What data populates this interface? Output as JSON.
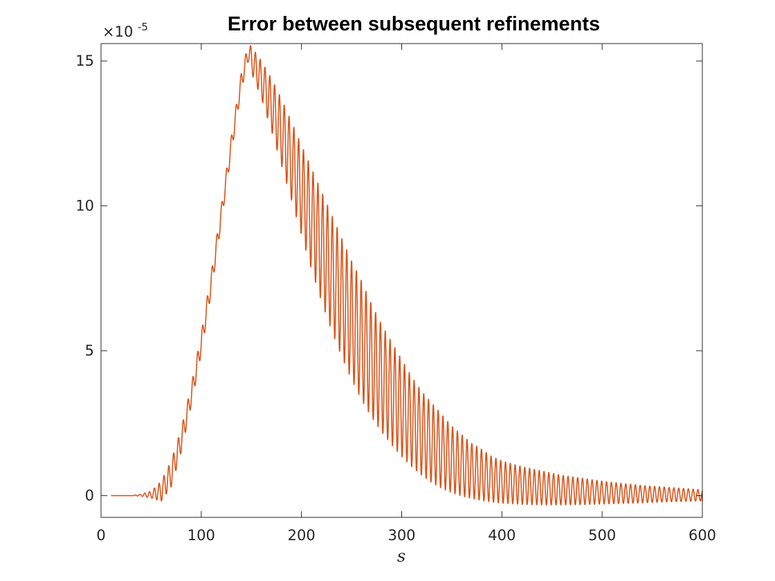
{
  "chart_data": {
    "type": "line",
    "title": "Error between subsequent refinements",
    "xlabel": "s",
    "ylabel": "",
    "xlim": [
      0,
      600
    ],
    "ylim": [
      -0.75,
      15.6
    ],
    "y_multiplier": "×10",
    "y_multiplier_exponent": "-5",
    "xticks": [
      0,
      100,
      200,
      300,
      400,
      500,
      600
    ],
    "yticks": [
      0,
      5,
      10,
      15
    ],
    "grid": false,
    "colors": {
      "series": "#D95319",
      "axis": "#262626"
    },
    "series": [
      {
        "envelope_upper": [
          [
            10,
            0.0
          ],
          [
            30,
            0.0
          ],
          [
            40,
            0.05
          ],
          [
            50,
            0.15
          ],
          [
            60,
            0.5
          ],
          [
            70,
            1.2
          ],
          [
            80,
            2.3
          ],
          [
            90,
            3.8
          ],
          [
            100,
            5.6
          ],
          [
            110,
            7.7
          ],
          [
            120,
            10.0
          ],
          [
            130,
            12.4
          ],
          [
            140,
            14.6
          ],
          [
            147,
            15.6
          ],
          [
            150,
            15.5
          ],
          [
            160,
            15.0
          ],
          [
            170,
            14.4
          ],
          [
            180,
            13.7
          ],
          [
            190,
            12.9
          ],
          [
            200,
            12.1
          ],
          [
            210,
            11.3
          ],
          [
            220,
            10.5
          ],
          [
            230,
            9.7
          ],
          [
            240,
            8.9
          ],
          [
            250,
            8.1
          ],
          [
            260,
            7.4
          ],
          [
            270,
            6.6
          ],
          [
            280,
            5.9
          ],
          [
            290,
            5.3
          ],
          [
            300,
            4.7
          ],
          [
            310,
            4.1
          ],
          [
            320,
            3.6
          ],
          [
            330,
            3.2
          ],
          [
            340,
            2.8
          ],
          [
            350,
            2.4
          ],
          [
            360,
            2.1
          ],
          [
            370,
            1.8
          ],
          [
            380,
            1.6
          ],
          [
            390,
            1.35
          ],
          [
            400,
            1.2
          ],
          [
            420,
            1.0
          ],
          [
            440,
            0.85
          ],
          [
            460,
            0.7
          ],
          [
            480,
            0.6
          ],
          [
            500,
            0.5
          ],
          [
            520,
            0.42
          ],
          [
            540,
            0.35
          ],
          [
            560,
            0.3
          ],
          [
            580,
            0.25
          ],
          [
            600,
            0.2
          ]
        ],
        "envelope_lower": [
          [
            10,
            0.0
          ],
          [
            30,
            0.0
          ],
          [
            40,
            -0.02
          ],
          [
            50,
            -0.08
          ],
          [
            60,
            -0.2
          ],
          [
            70,
            0.3
          ],
          [
            80,
            1.5
          ],
          [
            90,
            3.1
          ],
          [
            100,
            4.9
          ],
          [
            110,
            7.0
          ],
          [
            120,
            9.4
          ],
          [
            130,
            11.8
          ],
          [
            140,
            14.0
          ],
          [
            147,
            15.0
          ],
          [
            150,
            14.6
          ],
          [
            160,
            13.7
          ],
          [
            170,
            12.6
          ],
          [
            180,
            11.4
          ],
          [
            190,
            10.2
          ],
          [
            200,
            9.0
          ],
          [
            210,
            7.8
          ],
          [
            220,
            6.7
          ],
          [
            230,
            5.7
          ],
          [
            240,
            4.8
          ],
          [
            250,
            4.0
          ],
          [
            260,
            3.3
          ],
          [
            270,
            2.7
          ],
          [
            280,
            2.2
          ],
          [
            290,
            1.75
          ],
          [
            300,
            1.35
          ],
          [
            310,
            1.0
          ],
          [
            320,
            0.7
          ],
          [
            330,
            0.45
          ],
          [
            340,
            0.25
          ],
          [
            350,
            0.1
          ],
          [
            360,
            -0.02
          ],
          [
            370,
            -0.1
          ],
          [
            380,
            -0.17
          ],
          [
            390,
            -0.22
          ],
          [
            400,
            -0.26
          ],
          [
            420,
            -0.3
          ],
          [
            440,
            -0.32
          ],
          [
            460,
            -0.32
          ],
          [
            480,
            -0.31
          ],
          [
            500,
            -0.29
          ],
          [
            520,
            -0.27
          ],
          [
            540,
            -0.25
          ],
          [
            560,
            -0.22
          ],
          [
            580,
            -0.2
          ],
          [
            600,
            -0.18
          ]
        ],
        "oscillation_period": 4.8,
        "end_value": -0.2
      }
    ]
  }
}
